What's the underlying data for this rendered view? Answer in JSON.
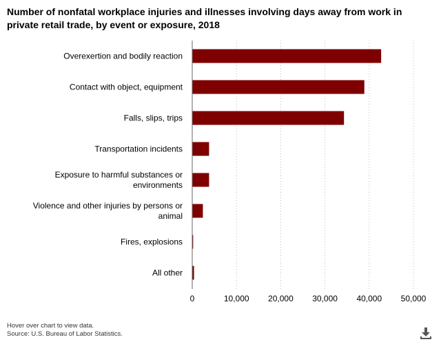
{
  "title": "Number of nonfatal workplace injuries and illnesses involving days away from work in private retail trade, by event or exposure, 2018",
  "footer": {
    "hint": "Hover over chart to view data.",
    "source": "Source: U.S. Bureau of Labor Statistics."
  },
  "icons": {
    "download": "download-icon"
  },
  "colors": {
    "bar": "#7f0000",
    "grid": "#bbbbbb",
    "axis": "#666666"
  },
  "chart_data": {
    "type": "bar",
    "orientation": "horizontal",
    "categories": [
      [
        "Overexertion and bodily reaction"
      ],
      [
        "Contact with object, equipment"
      ],
      [
        "Falls, slips, trips"
      ],
      [
        "Transportation incidents"
      ],
      [
        "Exposure to harmful substances or",
        "environments"
      ],
      [
        "Violence and other injuries by persons or",
        "animal"
      ],
      [
        "Fires, explosions"
      ],
      [
        "All other"
      ]
    ],
    "values": [
      42700,
      38900,
      34300,
      3800,
      3800,
      2400,
      200,
      400
    ],
    "xlim": [
      0,
      50000
    ],
    "xticks": [
      0,
      10000,
      20000,
      30000,
      40000,
      50000
    ],
    "xtick_labels": [
      "0",
      "10,000",
      "20,000",
      "30,000",
      "40,000",
      "50,000"
    ],
    "grid": true,
    "legend": "none"
  }
}
